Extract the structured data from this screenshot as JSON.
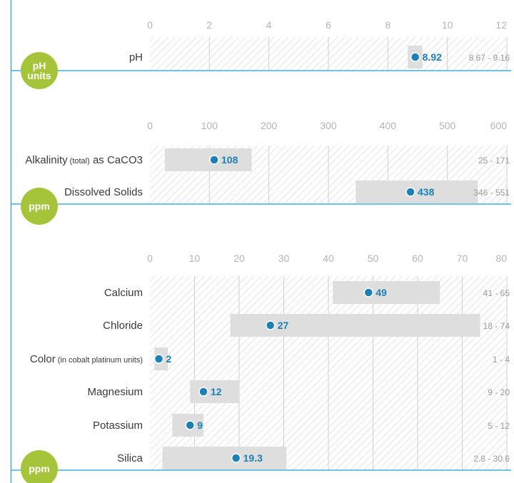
{
  "colors": {
    "accent_line": "#3cb3d8",
    "unit_badge": "#a6c43a",
    "dot": "#1c7fb6",
    "range_band": "#dedede",
    "hatch": "#d6d6d6",
    "gridline": "#cfcfcf"
  },
  "chart_data": [
    {
      "type": "range-dot",
      "xlim": [
        0,
        12
      ],
      "ticks": [
        0,
        2,
        4,
        6,
        8,
        10,
        12
      ],
      "unit_badge": [
        "pH",
        "units"
      ],
      "rows": [
        {
          "label": "pH",
          "label_note": "",
          "value": 8.92,
          "value_text": "8.92",
          "range": [
            8.67,
            9.16
          ],
          "range_text": "8.67 - 9.16"
        }
      ]
    },
    {
      "type": "range-dot",
      "xlim": [
        0,
        600
      ],
      "ticks": [
        0,
        100,
        200,
        300,
        400,
        500,
        600
      ],
      "unit_badge": [
        "ppm"
      ],
      "rows": [
        {
          "label": "Alkalinity",
          "label_note": "(total)",
          "label_suffix": "as CaCO3",
          "value": 108,
          "value_text": "108",
          "range": [
            25,
            171
          ],
          "range_text": "25 - 171"
        },
        {
          "label": "Dissolved Solids",
          "label_note": "",
          "value": 438,
          "value_text": "438",
          "range": [
            346,
            551
          ],
          "range_text": "346 - 551"
        }
      ]
    },
    {
      "type": "range-dot",
      "xlim": [
        0,
        80
      ],
      "ticks": [
        0,
        10,
        20,
        30,
        40,
        50,
        60,
        70,
        80
      ],
      "unit_badge": [
        "ppm"
      ],
      "rows": [
        {
          "label": "Calcium",
          "label_note": "",
          "value": 49,
          "value_text": "49",
          "range": [
            41,
            65
          ],
          "range_text": "41 - 65"
        },
        {
          "label": "Chloride",
          "label_note": "",
          "value": 27,
          "value_text": "27",
          "range": [
            18,
            74
          ],
          "range_text": "18 - 74"
        },
        {
          "label": "Color",
          "label_note": "(in cobalt platinum units)",
          "value": 2,
          "value_text": "2",
          "range": [
            1,
            4
          ],
          "range_text": "1 - 4"
        },
        {
          "label": "Magnesium",
          "label_note": "",
          "value": 12,
          "value_text": "12",
          "range": [
            9,
            20
          ],
          "range_text": "9 - 20"
        },
        {
          "label": "Potassium",
          "label_note": "",
          "value": 9,
          "value_text": "9",
          "range": [
            5,
            12
          ],
          "range_text": "5 - 12"
        },
        {
          "label": "Silica",
          "label_note": "",
          "value": 19.3,
          "value_text": "19.3",
          "range": [
            2.8,
            30.6
          ],
          "range_text": "2.8 - 30.6"
        }
      ]
    }
  ]
}
